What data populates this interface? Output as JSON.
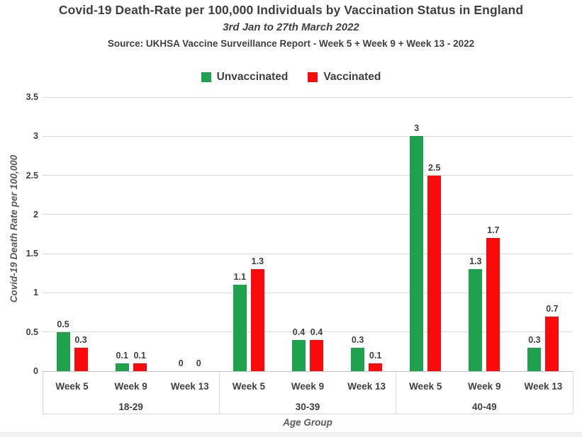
{
  "header": {
    "title": "Covid-19 Death-Rate per 100,000 Individuals by Vaccination Status in England",
    "subtitle": "3rd Jan to 27th March 2022",
    "source": "Source: UKHSA Vaccine Surveillance Report - Week 5 + Week 9 + Week 13 - 2022"
  },
  "legend": {
    "items": [
      {
        "label": "Unvaccinated",
        "color": "#1ea24d"
      },
      {
        "label": "Vaccinated",
        "color": "#fa0a0a"
      }
    ]
  },
  "chart_data": {
    "type": "bar",
    "title": "Covid-19 Death-Rate per 100,000 Individuals by Vaccination Status in England",
    "subtitle": "3rd Jan to 27th March 2022",
    "xlabel": "Age Group",
    "ylabel": "Covid-19 Death Rate per 100,000",
    "ylim": [
      0,
      3.5
    ],
    "yticks": [
      0,
      0.5,
      1,
      1.5,
      2,
      2.5,
      3,
      3.5
    ],
    "grid": true,
    "legend_position": "top",
    "week_categories": [
      "Week 5",
      "Week 9",
      "Week 13"
    ],
    "groups": [
      {
        "label": "18-29",
        "unvaccinated": [
          0.5,
          0.1,
          0
        ],
        "vaccinated": [
          0.3,
          0.1,
          0
        ]
      },
      {
        "label": "30-39",
        "unvaccinated": [
          1.1,
          0.4,
          0.3
        ],
        "vaccinated": [
          1.3,
          0.4,
          0.1
        ]
      },
      {
        "label": "40-49",
        "unvaccinated": [
          3,
          1.3,
          0.3
        ],
        "vaccinated": [
          2.5,
          1.7,
          0.7
        ]
      }
    ],
    "series": [
      {
        "name": "Unvaccinated",
        "color": "#1ea24d"
      },
      {
        "name": "Vaccinated",
        "color": "#fa0a0a"
      }
    ],
    "colors": {
      "grid": "#d9d9d9",
      "baseline": "#bfbfbf",
      "text_dark": "#3f3f3f",
      "text_gray": "#595959"
    }
  }
}
